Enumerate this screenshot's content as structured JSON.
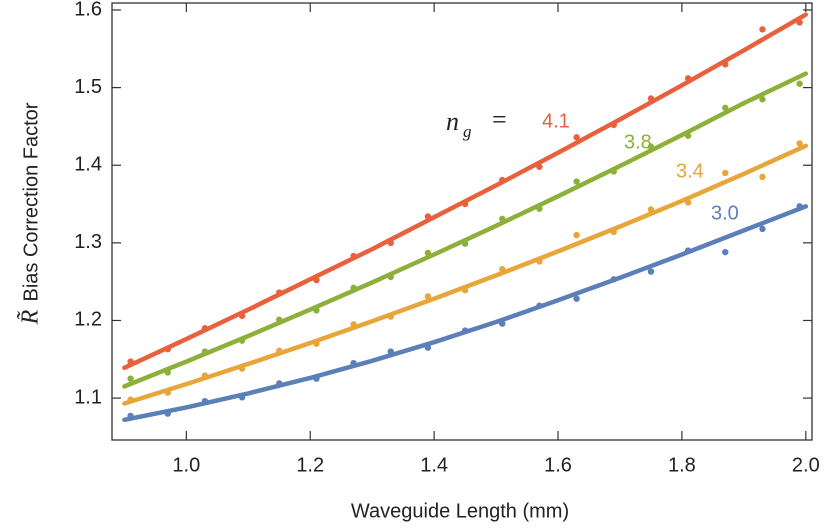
{
  "chart_data": {
    "type": "scatter",
    "xlabel": "Waveguide Length (mm)",
    "ylabel_symbol": "R̃",
    "ylabel": "Bias Correction Factor",
    "annotation": {
      "symbol": "n",
      "subscript": "g",
      "relation": "="
    },
    "xlim": [
      0.88,
      2.01
    ],
    "ylim": [
      1.046,
      1.609
    ],
    "xticks": [
      {
        "value": 1,
        "label": "1.0"
      },
      1.2,
      1.4,
      1.6,
      1.8,
      {
        "value": 2,
        "label": "2.0"
      }
    ],
    "yticks": [
      1.1,
      1.2,
      1.3,
      1.4,
      1.5,
      1.6
    ],
    "fit_x": [
      0.9,
      1.0,
      1.1,
      1.2,
      1.3,
      1.4,
      1.5,
      1.6,
      1.7,
      1.8,
      1.9,
      2.0
    ],
    "point_x": [
      0.91,
      0.97,
      1.03,
      1.09,
      1.15,
      1.21,
      1.27,
      1.33,
      1.39,
      1.45,
      1.51,
      1.57,
      1.63,
      1.69,
      1.75,
      1.81,
      1.87,
      1.93,
      1.99
    ],
    "series": [
      {
        "name": "4.1",
        "color": "#e8613c",
        "values": [
          1.147,
          1.163,
          1.19,
          1.206,
          1.236,
          1.252,
          1.283,
          1.3,
          1.334,
          1.35,
          1.381,
          1.398,
          1.436,
          1.452,
          1.486,
          1.512,
          1.53,
          1.575,
          1.584
        ],
        "fit": [
          1.139,
          1.176,
          1.214,
          1.253,
          1.292,
          1.333,
          1.374,
          1.416,
          1.459,
          1.503,
          1.548,
          1.594
        ]
      },
      {
        "name": "3.8",
        "color": "#8db03a",
        "values": [
          1.125,
          1.133,
          1.16,
          1.174,
          1.201,
          1.213,
          1.242,
          1.256,
          1.287,
          1.299,
          1.331,
          1.344,
          1.379,
          1.392,
          1.424,
          1.438,
          1.474,
          1.485,
          1.505
        ],
        "fit": [
          1.115,
          1.147,
          1.18,
          1.214,
          1.249,
          1.285,
          1.322,
          1.36,
          1.399,
          1.439,
          1.48,
          1.518
        ]
      },
      {
        "name": "3.4",
        "color": "#e8a53a",
        "values": [
          1.098,
          1.107,
          1.129,
          1.138,
          1.161,
          1.17,
          1.195,
          1.205,
          1.231,
          1.239,
          1.266,
          1.276,
          1.31,
          1.314,
          1.343,
          1.352,
          1.39,
          1.385,
          1.428
        ],
        "fit": [
          1.093,
          1.118,
          1.144,
          1.171,
          1.199,
          1.228,
          1.258,
          1.289,
          1.321,
          1.354,
          1.389,
          1.425
        ]
      },
      {
        "name": "3.0",
        "color": "#5b7fb8",
        "values": [
          1.077,
          1.08,
          1.096,
          1.101,
          1.119,
          1.125,
          1.145,
          1.16,
          1.165,
          1.187,
          1.196,
          1.219,
          1.228,
          1.253,
          1.263,
          1.29,
          1.288,
          1.318,
          1.347
        ],
        "fit": [
          1.072,
          1.088,
          1.106,
          1.126,
          1.148,
          1.172,
          1.198,
          1.226,
          1.255,
          1.285,
          1.316,
          1.347
        ]
      }
    ]
  }
}
